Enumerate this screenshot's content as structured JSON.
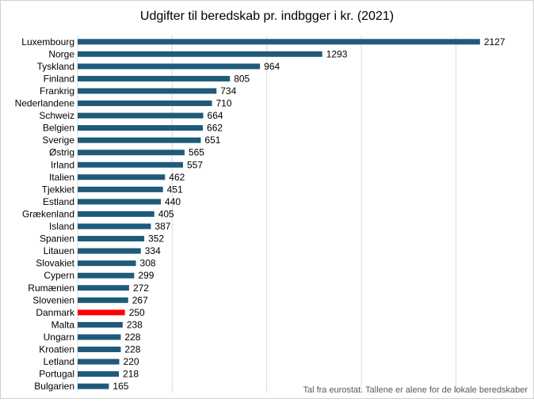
{
  "chart_data": {
    "type": "bar",
    "orientation": "horizontal",
    "title": "Udgifter til beredskab pr. indbgger i kr. (2021)",
    "categories": [
      "Luxembourg",
      "Norge",
      "Tyskland",
      "Finland",
      "Frankrig",
      "Nederlandene",
      "Schweiz",
      "Belgien",
      "Sverige",
      "Østrig",
      "Irland",
      "Italien",
      "Tjekkiet",
      "Estland",
      "Grækenland",
      "Island",
      "Spanien",
      "Litauen",
      "Slovakiet",
      "Cypern",
      "Rumænien",
      "Slovenien",
      "Danmark",
      "Malta",
      "Ungarn",
      "Kroatien",
      "Letland",
      "Portugal",
      "Bulgarien"
    ],
    "values": [
      2127,
      1293,
      964,
      805,
      734,
      710,
      664,
      662,
      651,
      565,
      557,
      462,
      451,
      440,
      405,
      387,
      352,
      334,
      308,
      299,
      272,
      267,
      250,
      238,
      228,
      228,
      220,
      218,
      165
    ],
    "highlight_category": "Danmark",
    "colors": {
      "bar": "#1f5a7a",
      "highlight": "#ff0000",
      "grid": "#d9d9d9"
    },
    "xlim": [
      0,
      2400
    ],
    "grid": true,
    "xlabel": "",
    "ylabel": "",
    "source_note": "Tal fra eurostat. Tallene er alene for de lokale beredskaber"
  }
}
